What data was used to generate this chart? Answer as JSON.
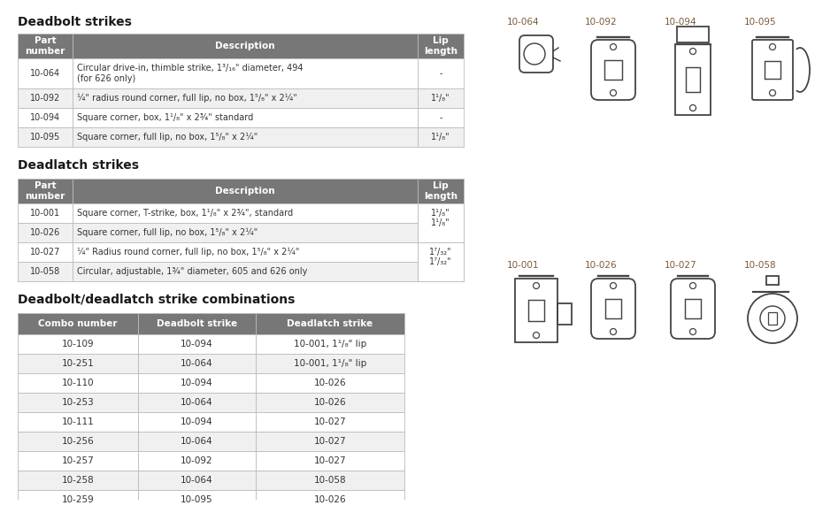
{
  "bg_color": "#ffffff",
  "header_color": "#777777",
  "header_text_color": "#ffffff",
  "row_alt_color": "#f0f0f0",
  "row_white": "#ffffff",
  "border_color": "#bbbbbb",
  "section_title_color": "#1a1a1a",
  "text_color": "#333333",
  "part_label_color": "#7a5c3a",
  "deadbolt_title": "Deadbolt strikes",
  "deadbolt_headers": [
    "Part\nnumber",
    "Description",
    "Lip\nlength"
  ],
  "deadbolt_rows": [
    [
      "10-064",
      "Circular drive-in, thimble strike, 1³/₁₆\" diameter, 494\n(for 626 only)",
      "-"
    ],
    [
      "10-092",
      "¼\" radius round corner, full lip, no box, 1⁵/₈\" x 2¼\"",
      "1¹/₈\""
    ],
    [
      "10-094",
      "Square corner, box, 1¹/₈\" x 2¾\" standard",
      "-"
    ],
    [
      "10-095",
      "Square corner, full lip, no box, 1⁵/₈\" x 2¼\"",
      "1¹/₈\""
    ]
  ],
  "deadlatch_title": "Deadlatch strikes",
  "deadlatch_headers": [
    "Part\nnumber",
    "Description",
    "Lip\nlength"
  ],
  "deadlatch_rows": [
    [
      "10-001",
      "Square corner, T-strike, box, 1¹/₈\" x 2¾\", standard",
      "1¹/₈\""
    ],
    [
      "10-026",
      "Square corner, full lip, no box, 1⁵/₈\" x 2¼\"",
      ""
    ],
    [
      "10-027",
      "¼\" Radius round corner, full lip, no box, 1⁵/₈\" x 2¼\"",
      "1⁷/₃₂\""
    ],
    [
      "10-058",
      "Circular, adjustable, 1¾\" diameter, 605 and 626 only",
      ""
    ]
  ],
  "combo_title": "Deadbolt/deadlatch strike combinations",
  "combo_headers": [
    "Combo number",
    "Deadbolt strike",
    "Deadlatch strike"
  ],
  "combo_rows": [
    [
      "10-109",
      "10-094",
      "10-001, 1¹/₈\" lip"
    ],
    [
      "10-251",
      "10-064",
      "10-001, 1¹/₈\" lip"
    ],
    [
      "10-110",
      "10-094",
      "10-026"
    ],
    [
      "10-253",
      "10-064",
      "10-026"
    ],
    [
      "10-111",
      "10-094",
      "10-027"
    ],
    [
      "10-256",
      "10-064",
      "10-027"
    ],
    [
      "10-257",
      "10-092",
      "10-027"
    ],
    [
      "10-258",
      "10-064",
      "10-058"
    ],
    [
      "10-259",
      "10-095",
      "10-026"
    ]
  ],
  "part_labels_row1": [
    "10-064",
    "10-092",
    "10-094",
    "10-095"
  ],
  "part_labels_row2": [
    "10-001",
    "10-026",
    "10-027",
    "10-058"
  ]
}
